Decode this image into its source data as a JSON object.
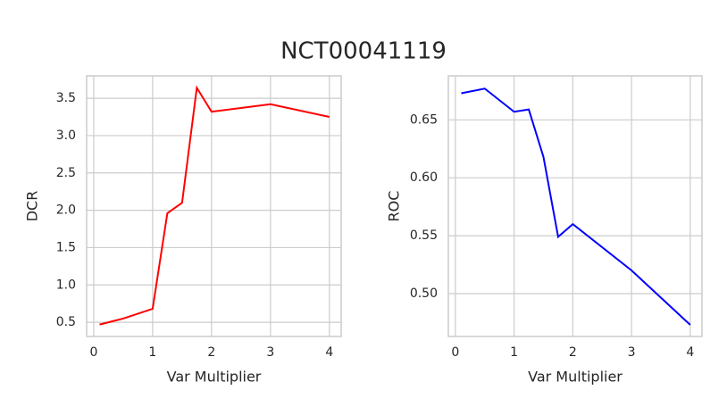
{
  "title": "NCT00041119",
  "chart_data": [
    {
      "type": "line",
      "xlabel": "Var Multiplier",
      "ylabel": "DCR",
      "x": [
        0.1,
        0.5,
        1.0,
        1.25,
        1.5,
        1.75,
        2.0,
        3.0,
        4.0
      ],
      "series": [
        {
          "color": "#ff0000",
          "values": [
            0.47,
            0.55,
            0.68,
            1.96,
            2.1,
            3.64,
            3.32,
            3.42,
            3.25
          ]
        }
      ],
      "xlim": [
        -0.12,
        4.2
      ],
      "xticks": [
        0,
        1,
        2,
        3,
        4
      ],
      "ylim": [
        0.31,
        3.8
      ],
      "yticks": [
        0.5,
        {
          "value": 1,
          "label": "1.0"
        },
        1.5,
        {
          "value": 2,
          "label": "2.0"
        },
        2.5,
        {
          "value": 3,
          "label": "3.0"
        },
        3.5
      ],
      "grid": true
    },
    {
      "type": "line",
      "xlabel": "Var Multiplier",
      "ylabel": "ROC",
      "x": [
        0.1,
        0.5,
        1.0,
        1.25,
        1.5,
        1.75,
        2.0,
        3.0,
        4.0
      ],
      "series": [
        {
          "color": "#0000ff",
          "values": [
            0.673,
            0.677,
            0.657,
            0.659,
            0.618,
            0.549,
            0.56,
            0.52,
            0.473
          ]
        }
      ],
      "xlim": [
        -0.12,
        4.2
      ],
      "xticks": [
        0,
        1,
        2,
        3,
        4
      ],
      "ylim": [
        0.463,
        0.688
      ],
      "yticks": [
        {
          "value": 0.5,
          "label": "0.50"
        },
        0.55,
        {
          "value": 0.6,
          "label": "0.60"
        },
        0.65
      ],
      "grid": true
    }
  ]
}
